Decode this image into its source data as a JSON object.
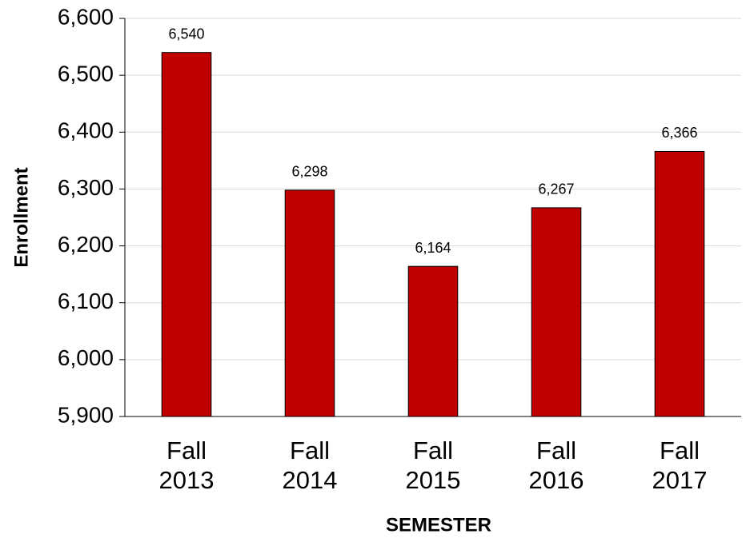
{
  "chart_data": {
    "type": "bar",
    "x_label": "SEMESTER",
    "y_label": "Enrollment",
    "categories": [
      "Fall 2013",
      "Fall 2014",
      "Fall 2015",
      "Fall 2016",
      "Fall 2017"
    ],
    "values": [
      6540,
      6298,
      6164,
      6267,
      6366
    ],
    "value_labels": [
      "6,540",
      "6,298",
      "6,164",
      "6,267",
      "6,366"
    ],
    "color": "#c00000",
    "ylim": [
      5900,
      6600
    ],
    "yticks": [
      {
        "value": 5900,
        "label": "5,900"
      },
      {
        "value": 6000,
        "label": "6,000"
      },
      {
        "value": 6100,
        "label": "6,100"
      },
      {
        "value": 6200,
        "label": "6,200"
      },
      {
        "value": 6300,
        "label": "6,300"
      },
      {
        "value": 6400,
        "label": "6,400"
      },
      {
        "value": 6500,
        "label": "6,500"
      },
      {
        "value": 6600,
        "label": "6,600"
      }
    ],
    "grid": true
  }
}
